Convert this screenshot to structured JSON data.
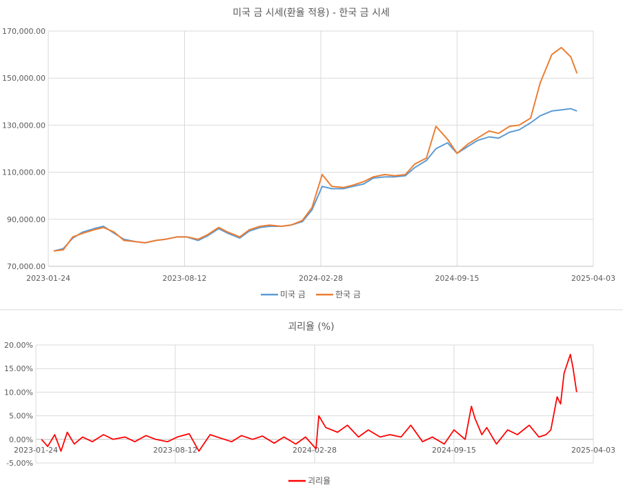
{
  "chart_data": [
    {
      "type": "line",
      "title": "미국 금 시세(환율 적용) - 한국 금 시세",
      "xlabel": "",
      "ylabel": "",
      "x_ticks": [
        "2023-01-24",
        "2023-08-12",
        "2024-02-28",
        "2024-09-15",
        "2025-04-03"
      ],
      "y_ticks": [
        "70,000.00",
        "90,000.00",
        "110,000.00",
        "130,000.00",
        "150,000.00",
        "170,000.00"
      ],
      "ylim": [
        70000,
        170000
      ],
      "grid": true,
      "legend_position": "bottom",
      "colors": {
        "us": "#5b9bd5",
        "kr": "#ed7d31"
      },
      "x": [
        "2023-02-01",
        "2023-02-15",
        "2023-03-01",
        "2023-03-15",
        "2023-04-01",
        "2023-04-15",
        "2023-05-01",
        "2023-05-15",
        "2023-06-01",
        "2023-06-15",
        "2023-07-01",
        "2023-07-15",
        "2023-08-01",
        "2023-08-15",
        "2023-09-01",
        "2023-09-15",
        "2023-10-01",
        "2023-10-15",
        "2023-11-01",
        "2023-11-15",
        "2023-12-01",
        "2023-12-15",
        "2024-01-01",
        "2024-01-15",
        "2024-02-01",
        "2024-02-15",
        "2024-03-01",
        "2024-03-15",
        "2024-04-01",
        "2024-04-15",
        "2024-05-01",
        "2024-05-15",
        "2024-06-01",
        "2024-06-15",
        "2024-07-01",
        "2024-07-15",
        "2024-08-01",
        "2024-08-15",
        "2024-09-01",
        "2024-09-15",
        "2024-10-01",
        "2024-10-15",
        "2024-11-01",
        "2024-11-15",
        "2024-12-01",
        "2024-12-15",
        "2025-01-01",
        "2025-01-15",
        "2025-02-01",
        "2025-02-15",
        "2025-03-01",
        "2025-03-10"
      ],
      "series": [
        {
          "name": "미국 금",
          "values": [
            76500,
            77500,
            82000,
            84500,
            86000,
            87000,
            84000,
            81500,
            80500,
            80000,
            81000,
            81500,
            82500,
            82500,
            81000,
            83000,
            86000,
            84000,
            82000,
            85000,
            86500,
            87000,
            87000,
            87500,
            89000,
            94000,
            104000,
            103000,
            103000,
            104000,
            105000,
            107500,
            108000,
            108000,
            108500,
            112000,
            115000,
            120000,
            122500,
            118000,
            121000,
            123500,
            125000,
            124500,
            127000,
            128000,
            131000,
            134000,
            136000,
            136500,
            137000,
            136000
          ]
        },
        {
          "name": "한국 금",
          "values": [
            76500,
            77000,
            82500,
            84000,
            85500,
            86500,
            84500,
            81000,
            80500,
            80000,
            81000,
            81500,
            82500,
            82500,
            81500,
            83500,
            86500,
            84500,
            82500,
            85500,
            87000,
            87500,
            87000,
            87500,
            89500,
            95000,
            109000,
            104000,
            103500,
            104500,
            106000,
            108000,
            109000,
            108500,
            109000,
            113500,
            116000,
            129500,
            124000,
            118000,
            122000,
            124500,
            127500,
            126500,
            129500,
            130000,
            133000,
            148000,
            160000,
            163000,
            159000,
            152000
          ]
        }
      ]
    },
    {
      "type": "line",
      "title": "괴리율 (%)",
      "xlabel": "",
      "ylabel": "",
      "x_ticks": [
        "2023-01-24",
        "2023-08-12",
        "2024-02-28",
        "2024-09-15",
        "2025-04-03"
      ],
      "y_ticks": [
        "-5.00%",
        "0.00%",
        "5.00%",
        "10.00%",
        "15.00%",
        "20.00%"
      ],
      "ylim": [
        -5,
        20
      ],
      "grid": true,
      "legend_position": "bottom",
      "colors": {
        "gap": "#ff0000"
      },
      "x": [
        "2023-02-01",
        "2023-02-10",
        "2023-02-20",
        "2023-03-01",
        "2023-03-10",
        "2023-03-20",
        "2023-04-01",
        "2023-04-15",
        "2023-05-01",
        "2023-05-15",
        "2023-06-01",
        "2023-06-15",
        "2023-07-01",
        "2023-07-15",
        "2023-08-01",
        "2023-08-15",
        "2023-09-01",
        "2023-09-15",
        "2023-10-01",
        "2023-10-15",
        "2023-11-01",
        "2023-11-15",
        "2023-12-01",
        "2023-12-15",
        "2024-01-01",
        "2024-01-15",
        "2024-02-01",
        "2024-02-15",
        "2024-03-01",
        "2024-03-05",
        "2024-03-15",
        "2024-04-01",
        "2024-04-15",
        "2024-05-01",
        "2024-05-15",
        "2024-06-01",
        "2024-06-15",
        "2024-07-01",
        "2024-07-15",
        "2024-08-01",
        "2024-08-15",
        "2024-09-01",
        "2024-09-15",
        "2024-10-01",
        "2024-10-10",
        "2024-10-15",
        "2024-10-25",
        "2024-11-01",
        "2024-11-15",
        "2024-12-01",
        "2024-12-15",
        "2025-01-01",
        "2025-01-15",
        "2025-01-25",
        "2025-02-01",
        "2025-02-10",
        "2025-02-15",
        "2025-02-20",
        "2025-03-01",
        "2025-03-05",
        "2025-03-10"
      ],
      "series": [
        {
          "name": "괴리율",
          "values": [
            0.0,
            -1.5,
            1.0,
            -2.5,
            1.5,
            -1.0,
            0.5,
            -0.5,
            1.0,
            0.0,
            0.5,
            -0.5,
            0.8,
            0.0,
            -0.5,
            0.5,
            1.2,
            -2.5,
            1.0,
            0.3,
            -0.5,
            0.8,
            0.0,
            0.7,
            -0.8,
            0.5,
            -1.0,
            0.5,
            -2.0,
            5.0,
            2.5,
            1.5,
            3.0,
            0.5,
            2.0,
            0.5,
            1.0,
            0.5,
            3.0,
            -0.5,
            0.5,
            -1.0,
            2.0,
            0.0,
            7.0,
            4.5,
            1.0,
            2.5,
            -1.0,
            2.0,
            1.0,
            3.0,
            0.5,
            1.0,
            2.0,
            9.0,
            7.5,
            14.0,
            18.0,
            15.0,
            10.0
          ]
        }
      ]
    }
  ]
}
